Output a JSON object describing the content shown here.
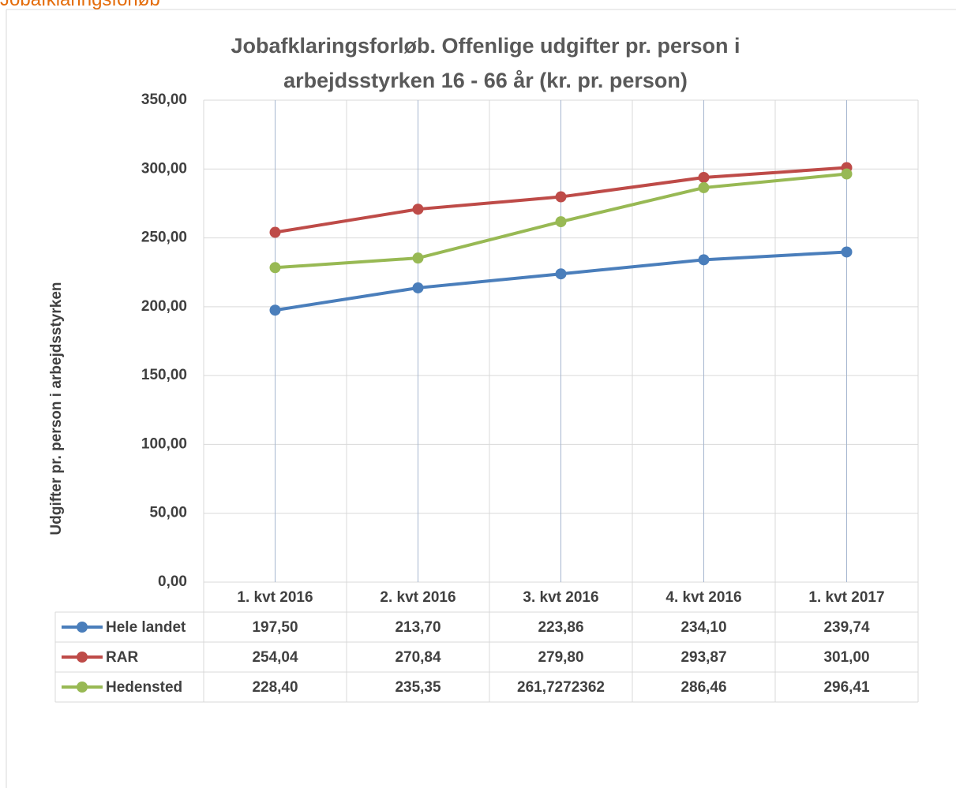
{
  "header": {
    "title": "Jobafklaringsforløb"
  },
  "chart_data": {
    "type": "line",
    "title": "Jobafklaringsforløb. Offenlige udgifter pr. person i arbejdsstyrken 16 - 66 år (kr. pr. person)",
    "y_label": "Udgifter pr. person i  arbejdsstyrken",
    "categories": [
      "1. kvt 2016",
      "2. kvt 2016",
      "3. kvt 2016",
      "4. kvt 2016",
      "1. kvt 2017"
    ],
    "series": [
      {
        "name": "Hele landet",
        "color": "#4a7ebb",
        "values": [
          197.5,
          213.7,
          223.86,
          234.1,
          239.74
        ],
        "value_labels": [
          "197,50",
          "213,70",
          "223,86",
          "234,10",
          "239,74"
        ]
      },
      {
        "name": "RAR",
        "color": "#be4b48",
        "values": [
          254.04,
          270.84,
          279.8,
          293.87,
          301.0
        ],
        "value_labels": [
          "254,04",
          "270,84",
          "279,80",
          "293,87",
          "301,00"
        ]
      },
      {
        "name": "Hedensted",
        "color": "#98b954",
        "values": [
          228.4,
          235.35,
          261.7272362,
          286.46,
          296.41
        ],
        "value_labels": [
          "228,40",
          "235,35",
          "261,7272362",
          "286,46",
          "296,41"
        ]
      }
    ],
    "ylim": [
      0,
      350
    ],
    "yticks": [
      {
        "value": 0,
        "label": "0,00"
      },
      {
        "value": 50,
        "label": "50,00"
      },
      {
        "value": 100,
        "label": "100,00"
      },
      {
        "value": 150,
        "label": "150,00"
      },
      {
        "value": 200,
        "label": "200,00"
      },
      {
        "value": 250,
        "label": "250,00"
      },
      {
        "value": 300,
        "label": "300,00"
      },
      {
        "value": 350,
        "label": "350,00"
      }
    ],
    "grid": true,
    "data_table": true
  }
}
